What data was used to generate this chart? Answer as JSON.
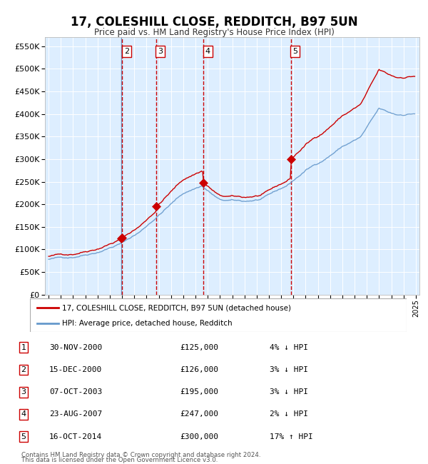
{
  "title": "17, COLESHILL CLOSE, REDDITCH, B97 5UN",
  "subtitle": "Price paid vs. HM Land Registry's House Price Index (HPI)",
  "legend_line1": "17, COLESHILL CLOSE, REDDITCH, B97 5UN (detached house)",
  "legend_line2": "HPI: Average price, detached house, Redditch",
  "footer1": "Contains HM Land Registry data © Crown copyright and database right 2024.",
  "footer2": "This data is licensed under the Open Government Licence v3.0.",
  "transactions": [
    {
      "num": 1,
      "date": "2000-11-30",
      "price": 125000,
      "x_year": 2000.92
    },
    {
      "num": 2,
      "date": "2000-12-15",
      "price": 126000,
      "x_year": 2001.0
    },
    {
      "num": 3,
      "date": "2003-10-07",
      "price": 195000,
      "x_year": 2003.77
    },
    {
      "num": 4,
      "date": "2007-08-23",
      "price": 247000,
      "x_year": 2007.65
    },
    {
      "num": 5,
      "date": "2014-10-16",
      "price": 300000,
      "x_year": 2014.79
    }
  ],
  "table_rows": [
    {
      "num": 1,
      "date_str": "30-NOV-2000",
      "price_str": "£125,000",
      "pct_str": "4% ↓ HPI"
    },
    {
      "num": 2,
      "date_str": "15-DEC-2000",
      "price_str": "£126,000",
      "pct_str": "3% ↓ HPI"
    },
    {
      "num": 3,
      "date_str": "07-OCT-2003",
      "price_str": "£195,000",
      "pct_str": "3% ↓ HPI"
    },
    {
      "num": 4,
      "date_str": "23-AUG-2007",
      "price_str": "£247,000",
      "pct_str": "2% ↓ HPI"
    },
    {
      "num": 5,
      "date_str": "16-OCT-2014",
      "price_str": "£300,000",
      "pct_str": "17% ↑ HPI"
    }
  ],
  "hpi_color": "#6699cc",
  "price_color": "#cc0000",
  "marker_color": "#cc0000",
  "vline_color_blue": "#6699cc",
  "vline_color_red": "#cc0000",
  "bg_color": "#ddeeff",
  "grid_color": "#ffffff",
  "ylim": [
    0,
    570000
  ],
  "yticks": [
    0,
    50000,
    100000,
    150000,
    200000,
    250000,
    300000,
    350000,
    400000,
    450000,
    500000,
    550000
  ],
  "xlim_start": 1994.7,
  "xlim_end": 2025.3,
  "hpi_key_times": [
    1995.0,
    1997.0,
    1999.0,
    2001.0,
    2002.5,
    2004.5,
    2006.0,
    2007.5,
    2009.0,
    2011.0,
    2012.5,
    2014.5,
    2016.0,
    2017.5,
    2019.0,
    2020.5,
    2022.0,
    2022.8,
    2023.5,
    2025.0
  ],
  "hpi_key_vals": [
    78000,
    84000,
    99000,
    120000,
    145000,
    195000,
    230000,
    248000,
    215000,
    210000,
    215000,
    242000,
    275000,
    300000,
    330000,
    350000,
    410000,
    400000,
    395000,
    400000
  ],
  "sale_times": [
    2000.92,
    2001.0,
    2003.77,
    2007.65,
    2014.79
  ],
  "sale_prices": [
    125000,
    126000,
    195000,
    247000,
    300000
  ]
}
